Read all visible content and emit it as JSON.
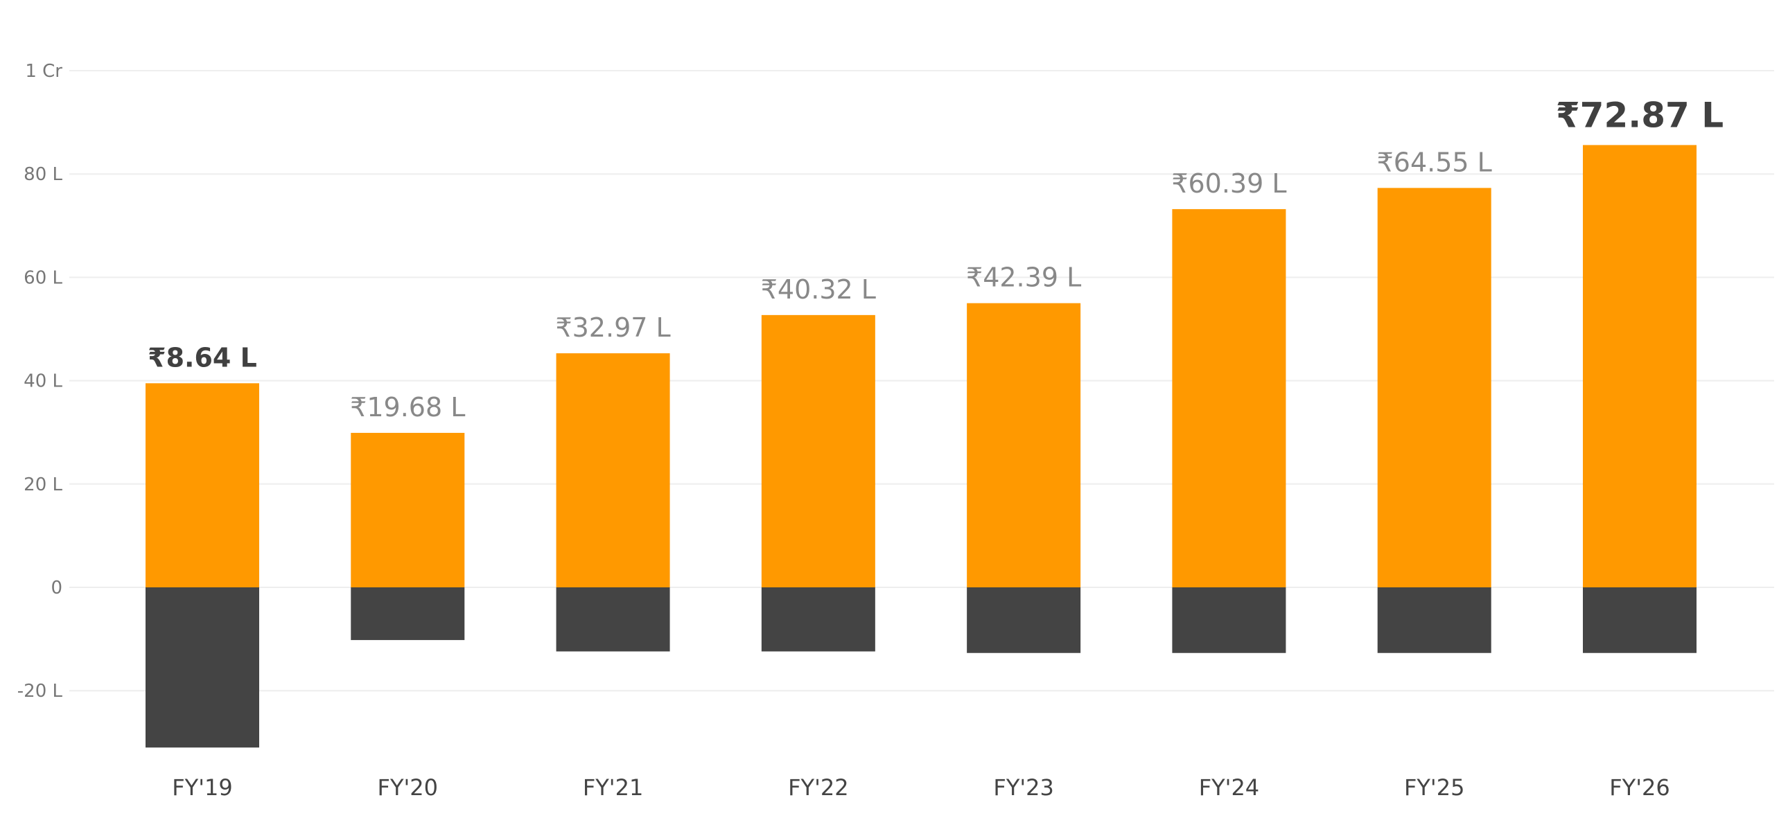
{
  "chart_data": {
    "type": "bar",
    "categories": [
      "FY'19",
      "FY'20",
      "FY'21",
      "FY'22",
      "FY'23",
      "FY'24",
      "FY'25",
      "FY'26"
    ],
    "series": [
      {
        "values": [
          39.5,
          29.9,
          45.3,
          52.7,
          55.0,
          73.2,
          77.3,
          85.6
        ]
      },
      {
        "values": [
          -31.0,
          -10.2,
          -12.4,
          -12.4,
          -12.7,
          -12.7,
          -12.7,
          -12.7
        ]
      }
    ],
    "data_labels": [
      "₹8.64 L",
      "₹19.68 L",
      "₹32.97 L",
      "₹40.32 L",
      "₹42.39 L",
      "₹60.39 L",
      "₹64.55 L",
      "₹72.87 L"
    ],
    "highlighted_labels": [
      0,
      7
    ],
    "y_ticks": [
      {
        "value": 100,
        "label": "1 Cr"
      },
      {
        "value": 80,
        "label": "80 L"
      },
      {
        "value": 60,
        "label": "60 L"
      },
      {
        "value": 40,
        "label": "40 L"
      },
      {
        "value": 20,
        "label": "20 L"
      },
      {
        "value": 0,
        "label": "0"
      },
      {
        "value": -20,
        "label": "-20 L"
      }
    ],
    "ylim": [
      -34,
      100
    ],
    "grid": true,
    "title": "",
    "xlabel": "",
    "ylabel": "",
    "colors": {
      "positive": "#FF9900",
      "negative": "#444444",
      "label_muted": "#888888",
      "label_highlight": "#404040",
      "grid": "#EEEEEE",
      "tick": "#777777",
      "category": "#444444"
    }
  }
}
